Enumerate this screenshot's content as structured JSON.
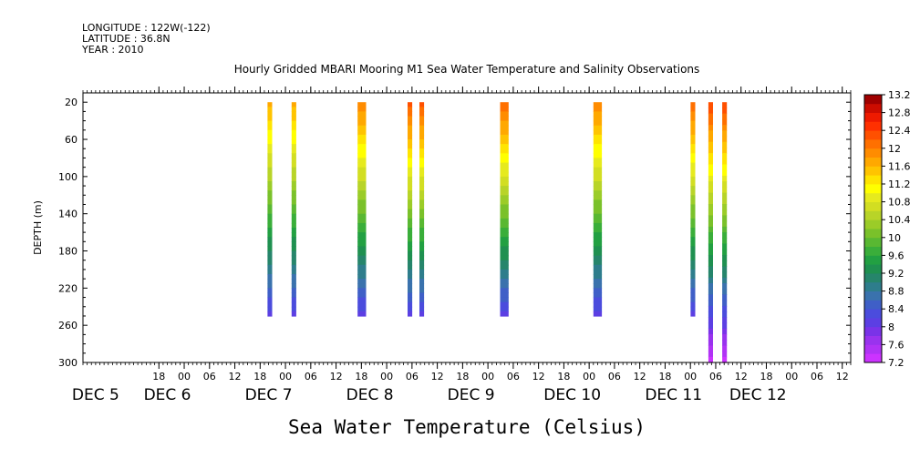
{
  "header": {
    "longitude": "LONGITUDE : 122W(-122)",
    "latitude": "LATITUDE : 36.8N",
    "year": "YEAR : 2010"
  },
  "chart_data": {
    "type": "heatmap",
    "title": "Hourly Gridded MBARI Mooring M1 Sea Water Temperature and Salinity Observations",
    "xlabel": "",
    "ylabel": "DEPTH (m)",
    "colorbar_label": "Sea Water Temperature (Celsius)",
    "y_ticks": [
      "20",
      "60",
      "100",
      "140",
      "180",
      "220",
      "260",
      "300"
    ],
    "ylim": [
      300,
      10
    ],
    "x_hour_ticks": [
      {
        "t": 18,
        "label": "18"
      },
      {
        "t": 24,
        "label": "00"
      },
      {
        "t": 30,
        "label": "06"
      },
      {
        "t": 36,
        "label": "12"
      },
      {
        "t": 42,
        "label": "18"
      },
      {
        "t": 48,
        "label": "00"
      },
      {
        "t": 54,
        "label": "06"
      },
      {
        "t": 60,
        "label": "12"
      },
      {
        "t": 66,
        "label": "18"
      },
      {
        "t": 72,
        "label": "00"
      },
      {
        "t": 78,
        "label": "06"
      },
      {
        "t": 84,
        "label": "12"
      },
      {
        "t": 90,
        "label": "18"
      },
      {
        "t": 96,
        "label": "00"
      },
      {
        "t": 102,
        "label": "06"
      },
      {
        "t": 108,
        "label": "12"
      },
      {
        "t": 114,
        "label": "18"
      },
      {
        "t": 120,
        "label": "00"
      },
      {
        "t": 126,
        "label": "06"
      },
      {
        "t": 132,
        "label": "12"
      },
      {
        "t": 138,
        "label": "18"
      },
      {
        "t": 144,
        "label": "00"
      },
      {
        "t": 150,
        "label": "06"
      },
      {
        "t": 156,
        "label": "12"
      },
      {
        "t": 162,
        "label": "18"
      },
      {
        "t": 168,
        "label": "00"
      },
      {
        "t": 174,
        "label": "06"
      },
      {
        "t": 180,
        "label": "12"
      }
    ],
    "x_day_labels": [
      {
        "t": 3,
        "label": "DEC  5"
      },
      {
        "t": 20,
        "label": "DEC  6"
      },
      {
        "t": 44,
        "label": "DEC  7"
      },
      {
        "t": 68,
        "label": "DEC  8"
      },
      {
        "t": 92,
        "label": "DEC  9"
      },
      {
        "t": 116,
        "label": "DEC 10"
      },
      {
        "t": 140,
        "label": "DEC 11"
      },
      {
        "t": 160,
        "label": "DEC 12"
      }
    ],
    "xlim_hours_since_dec5": [
      0,
      182
    ],
    "colorbar_ticks": [
      "7.2",
      "7.6",
      "8",
      "8.4",
      "8.8",
      "9.2",
      "9.6",
      "10",
      "10.4",
      "10.8",
      "11.2",
      "11.6",
      "12",
      "12.4",
      "12.8",
      "13.2"
    ],
    "color_levels": [
      {
        "min": 7.2,
        "max": 7.4,
        "color": "#cc33ff"
      },
      {
        "min": 7.4,
        "max": 7.6,
        "color": "#b033f5"
      },
      {
        "min": 7.6,
        "max": 7.8,
        "color": "#9933ee"
      },
      {
        "min": 7.8,
        "max": 8.0,
        "color": "#7a33e8"
      },
      {
        "min": 8.0,
        "max": 8.2,
        "color": "#5c3fe3"
      },
      {
        "min": 8.2,
        "max": 8.4,
        "color": "#4b4cdd"
      },
      {
        "min": 8.4,
        "max": 8.6,
        "color": "#3f5fc7"
      },
      {
        "min": 8.6,
        "max": 8.8,
        "color": "#3a72ad"
      },
      {
        "min": 8.8,
        "max": 9.0,
        "color": "#2e7d8c"
      },
      {
        "min": 9.0,
        "max": 9.2,
        "color": "#26856b"
      },
      {
        "min": 9.2,
        "max": 9.4,
        "color": "#1f9050"
      },
      {
        "min": 9.4,
        "max": 9.6,
        "color": "#22a042"
      },
      {
        "min": 9.6,
        "max": 9.8,
        "color": "#3aae3a"
      },
      {
        "min": 9.8,
        "max": 10.0,
        "color": "#59b832"
      },
      {
        "min": 10.0,
        "max": 10.2,
        "color": "#7ac12a"
      },
      {
        "min": 10.2,
        "max": 10.4,
        "color": "#9bcc28"
      },
      {
        "min": 10.4,
        "max": 10.6,
        "color": "#b8d428"
      },
      {
        "min": 10.6,
        "max": 10.8,
        "color": "#d2de22"
      },
      {
        "min": 10.8,
        "max": 11.0,
        "color": "#e6ea1e"
      },
      {
        "min": 11.0,
        "max": 11.2,
        "color": "#ffff00"
      },
      {
        "min": 11.2,
        "max": 11.4,
        "color": "#ffe400"
      },
      {
        "min": 11.4,
        "max": 11.6,
        "color": "#ffc400"
      },
      {
        "min": 11.6,
        "max": 11.8,
        "color": "#ffa800"
      },
      {
        "min": 11.8,
        "max": 12.0,
        "color": "#ff8c00"
      },
      {
        "min": 12.0,
        "max": 12.2,
        "color": "#ff7000"
      },
      {
        "min": 12.2,
        "max": 12.4,
        "color": "#ff5000"
      },
      {
        "min": 12.4,
        "max": 12.6,
        "color": "#ff3000"
      },
      {
        "min": 12.6,
        "max": 12.8,
        "color": "#ee1a00"
      },
      {
        "min": 12.8,
        "max": 13.0,
        "color": "#cc0c00"
      },
      {
        "min": 13.0,
        "max": 13.2,
        "color": "#a00000"
      }
    ],
    "columns": [
      {
        "t": 44.3,
        "width_h": 1.1,
        "depth_top": 20,
        "depth_bottom": 250,
        "temp_top": 11.7,
        "temp_bottom": 8.1
      },
      {
        "t": 50.0,
        "width_h": 1.1,
        "depth_top": 20,
        "depth_bottom": 250,
        "temp_top": 11.7,
        "temp_bottom": 8.1
      },
      {
        "t": 66.1,
        "width_h": 2.0,
        "depth_top": 20,
        "depth_bottom": 250,
        "temp_top": 12.0,
        "temp_bottom": 8.1
      },
      {
        "t": 77.5,
        "width_h": 1.1,
        "depth_top": 20,
        "depth_bottom": 250,
        "temp_top": 12.3,
        "temp_bottom": 8.1
      },
      {
        "t": 80.3,
        "width_h": 1.1,
        "depth_top": 20,
        "depth_bottom": 250,
        "temp_top": 12.3,
        "temp_bottom": 8.1
      },
      {
        "t": 99.9,
        "width_h": 2.0,
        "depth_top": 20,
        "depth_bottom": 250,
        "temp_top": 12.2,
        "temp_bottom": 8.1
      },
      {
        "t": 122.0,
        "width_h": 2.0,
        "depth_top": 20,
        "depth_bottom": 250,
        "temp_top": 12.0,
        "temp_bottom": 8.1
      },
      {
        "t": 144.6,
        "width_h": 1.1,
        "depth_top": 20,
        "depth_bottom": 250,
        "temp_top": 12.2,
        "temp_bottom": 8.1
      },
      {
        "t": 148.8,
        "width_h": 1.1,
        "depth_top": 20,
        "depth_bottom": 300,
        "temp_top": 12.4,
        "temp_bottom": 7.3
      },
      {
        "t": 152.1,
        "width_h": 1.1,
        "depth_top": 20,
        "depth_bottom": 300,
        "temp_top": 12.4,
        "temp_bottom": 7.3
      }
    ]
  }
}
